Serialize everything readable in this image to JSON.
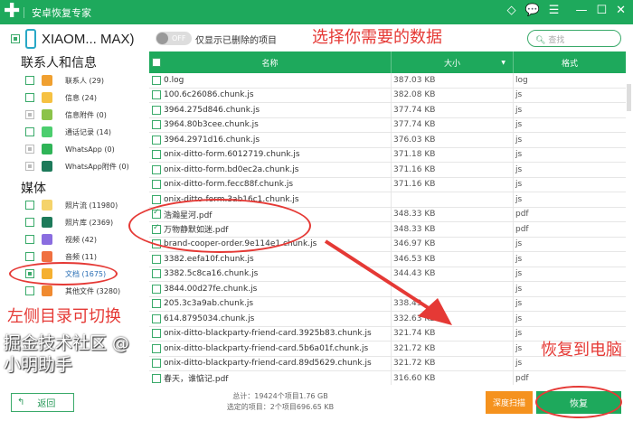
{
  "app": {
    "title": "安卓恢复专家",
    "logo": "✚"
  },
  "device": {
    "name": "XIAOM... MAX)"
  },
  "toolbar": {
    "toggle": "OFF",
    "toggle_label": "仅显示已删除的项目",
    "search_placeholder": "查找"
  },
  "sidebar": {
    "section1": "联系人和信息",
    "section2": "媒体",
    "items1": [
      {
        "label": "联系人 (29)",
        "color": "#f0a030",
        "state": "empty"
      },
      {
        "label": "信息 (24)",
        "color": "#f6c142",
        "state": "empty"
      },
      {
        "label": "信息附件 (0)",
        "color": "#8bc34a",
        "state": "disabled"
      },
      {
        "label": "通话记录 (14)",
        "color": "#4cce6e",
        "state": "empty"
      },
      {
        "label": "WhatsApp (0)",
        "color": "#2fb457",
        "state": "disabled"
      },
      {
        "label": "WhatsApp附件 (0)",
        "color": "#1d7a5a",
        "state": "disabled"
      }
    ],
    "items2": [
      {
        "label": "照片流 (11980)",
        "color": "#f5d36a",
        "state": "empty"
      },
      {
        "label": "照片库 (2369)",
        "color": "#1d7a5a",
        "state": "empty"
      },
      {
        "label": "视频 (42)",
        "color": "#8a6de0",
        "state": "empty"
      },
      {
        "label": "音频 (11)",
        "color": "#f07040",
        "state": "empty"
      },
      {
        "label": "文档 (1675)",
        "color": "#f5b030",
        "state": "partial",
        "active": true
      },
      {
        "label": "其他文件 (3280)",
        "color": "#f08a30",
        "state": "empty"
      }
    ]
  },
  "table": {
    "headers": [
      "名称",
      "大小",
      "格式"
    ],
    "rows": [
      [
        "0.log",
        "387.03 KB",
        "log",
        false
      ],
      [
        "100.6c26086.chunk.js",
        "382.08 KB",
        "js",
        false
      ],
      [
        "3964.275d846.chunk.js",
        "377.74 KB",
        "js",
        false
      ],
      [
        "3964.80b3cee.chunk.js",
        "377.74 KB",
        "js",
        false
      ],
      [
        "3964.2971d16.chunk.js",
        "376.03 KB",
        "js",
        false
      ],
      [
        "onix-ditto-form.6012719.chunk.js",
        "371.18 KB",
        "js",
        false
      ],
      [
        "onix-ditto-form.bd0ec2a.chunk.js",
        "371.16 KB",
        "js",
        false
      ],
      [
        "onix-ditto-form.fecc88f.chunk.js",
        "371.16 KB",
        "js",
        false
      ],
      [
        "onix-ditto-form.3ab16c1.chunk.js",
        "",
        "js",
        false
      ],
      [
        "浩瀚星河.pdf",
        "348.33 KB",
        "pdf",
        true
      ],
      [
        "万物静默如迷.pdf",
        "348.33 KB",
        "pdf",
        true
      ],
      [
        "brand-cooper-order.9e114e1.chunk.js",
        "346.97 KB",
        "js",
        false
      ],
      [
        "3382.eefa10f.chunk.js",
        "346.53 KB",
        "js",
        false
      ],
      [
        "3382.5c8ca16.chunk.js",
        "344.43 KB",
        "js",
        false
      ],
      [
        "3844.00d27fe.chunk.js",
        "",
        "js",
        false
      ],
      [
        "205.3c3a9ab.chunk.js",
        "338.49",
        "js",
        false
      ],
      [
        "614.8795034.chunk.js",
        "332.63 KB",
        "js",
        false
      ],
      [
        "onix-ditto-blackparty-friend-card.3925b83.chunk.js",
        "321.74 KB",
        "js",
        false
      ],
      [
        "onix-ditto-blackparty-friend-card.5b6a01f.chunk.js",
        "321.72 KB",
        "js",
        false
      ],
      [
        "onix-ditto-blackparty-friend-card.89d5629.chunk.js",
        "321.72 KB",
        "js",
        false
      ],
      [
        "春天，谁惦记.pdf",
        "316.60 KB",
        "pdf",
        false
      ]
    ]
  },
  "footer": {
    "back": "返回",
    "total": "总计：19424个项目1.76 GB",
    "selected": "选定的项目：2个项目696.65 KB",
    "scan": "深度扫描",
    "recover": "恢复"
  },
  "annotations": {
    "select": "选择你需要的数据",
    "left": "左侧目录可切换",
    "recover": "恢复到电脑",
    "color": "#e53935"
  },
  "watermark": "掘金技术社区 @ 小明助手",
  "colors": {
    "brand": "#1ea95c",
    "scan": "#f5921e"
  }
}
